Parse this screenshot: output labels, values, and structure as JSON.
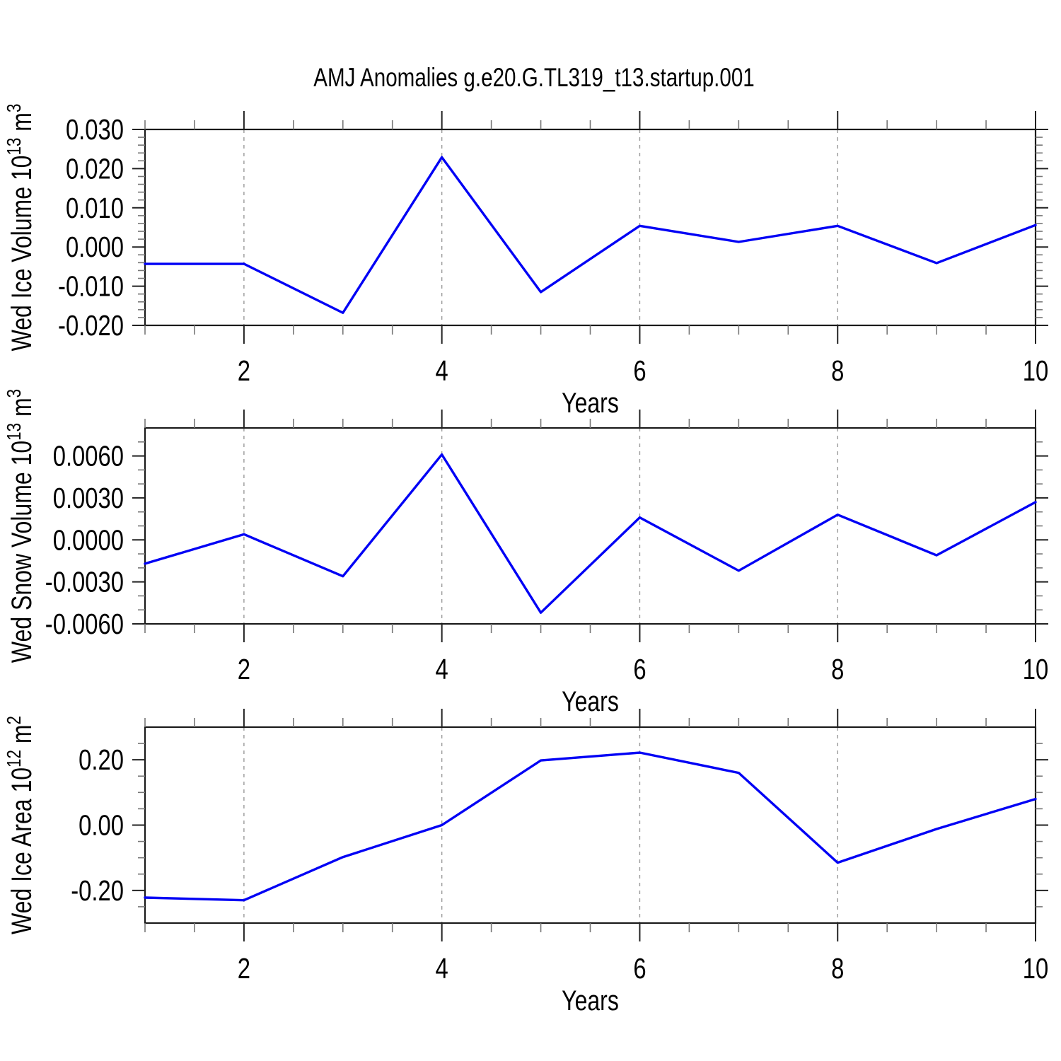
{
  "title": "AMJ Anomalies g.e20.G.TL319_t13.startup.001",
  "colors": {
    "line": "#0000F5",
    "grid": "#999999",
    "frame": "#1A1A1A",
    "tick_major": "#222222",
    "tick_minor": "#777777",
    "text": "#000000",
    "background": "#FFFFFF"
  },
  "chart_data": [
    {
      "type": "line",
      "id": "wed-ice-volume",
      "ylabel": "Wed Ice Volume 10^13 m^3",
      "ylabel_parts": [
        {
          "t": "Wed Ice Volume 10"
        },
        {
          "t": "13",
          "sup": true
        },
        {
          "t": " m"
        },
        {
          "t": "3",
          "sup": true
        }
      ],
      "xlabel": "Years",
      "x": [
        1,
        2,
        3,
        4,
        5,
        6,
        7,
        8,
        9,
        10
      ],
      "values": [
        -0.0043,
        -0.0043,
        -0.0168,
        0.0229,
        -0.0115,
        0.0054,
        0.0013,
        0.0054,
        -0.0041,
        0.0056
      ],
      "ylim": [
        -0.02,
        0.03
      ],
      "yticks": [
        {
          "v": 0.03,
          "label": "0.030"
        },
        {
          "v": 0.02,
          "label": "0.020"
        },
        {
          "v": 0.01,
          "label": "0.010"
        },
        {
          "v": 0.0,
          "label": "0.000"
        },
        {
          "v": -0.01,
          "label": "-0.010"
        },
        {
          "v": -0.02,
          "label": "-0.020"
        }
      ],
      "y_minor_step": 0.002,
      "xlim": [
        1,
        10
      ],
      "xticks": [
        {
          "v": 2,
          "label": "2"
        },
        {
          "v": 4,
          "label": "4"
        },
        {
          "v": 6,
          "label": "6"
        },
        {
          "v": 8,
          "label": "8"
        },
        {
          "v": 10,
          "label": "10"
        }
      ],
      "x_minor_step": 0.5,
      "grid_x": [
        2,
        4,
        6,
        8
      ],
      "grid_style": "vertical-dashed",
      "legend": "none"
    },
    {
      "type": "line",
      "id": "wed-snow-volume",
      "ylabel": "Wed Snow Volume 10^13 m^3",
      "ylabel_parts": [
        {
          "t": "Wed Snow Volume 10"
        },
        {
          "t": "13",
          "sup": true
        },
        {
          "t": " m"
        },
        {
          "t": "3",
          "sup": true
        }
      ],
      "xlabel": "Years",
      "x": [
        1,
        2,
        3,
        4,
        5,
        6,
        7,
        8,
        9,
        10
      ],
      "values": [
        -0.0017,
        0.0004,
        -0.0026,
        0.0061,
        -0.0052,
        0.0016,
        -0.0022,
        0.0018,
        -0.0011,
        0.0027
      ],
      "ylim": [
        -0.006,
        0.008
      ],
      "yticks": [
        {
          "v": 0.006,
          "label": "0.0060"
        },
        {
          "v": 0.003,
          "label": "0.0030"
        },
        {
          "v": 0.0,
          "label": "0.0000"
        },
        {
          "v": -0.003,
          "label": "-0.0030"
        },
        {
          "v": -0.006,
          "label": "-0.0060"
        }
      ],
      "y_minor_step": 0.001,
      "xlim": [
        1,
        10
      ],
      "xticks": [
        {
          "v": 2,
          "label": "2"
        },
        {
          "v": 4,
          "label": "4"
        },
        {
          "v": 6,
          "label": "6"
        },
        {
          "v": 8,
          "label": "8"
        },
        {
          "v": 10,
          "label": "10"
        }
      ],
      "x_minor_step": 0.5,
      "grid_x": [
        2,
        4,
        6,
        8
      ],
      "grid_style": "vertical-dashed",
      "legend": "none"
    },
    {
      "type": "line",
      "id": "wed-ice-area",
      "ylabel": "Wed Ice Area 10^12 m^2",
      "ylabel_parts": [
        {
          "t": "Wed Ice Area 10"
        },
        {
          "t": "12",
          "sup": true
        },
        {
          "t": " m"
        },
        {
          "t": "2",
          "sup": true
        }
      ],
      "xlabel": "Years",
      "x": [
        1,
        2,
        3,
        4,
        5,
        6,
        7,
        8,
        9,
        10
      ],
      "values": [
        -0.222,
        -0.23,
        -0.098,
        0.0,
        0.198,
        0.222,
        0.16,
        -0.115,
        -0.012,
        0.08
      ],
      "ylim": [
        -0.3,
        0.3
      ],
      "yticks": [
        {
          "v": 0.2,
          "label": "0.20"
        },
        {
          "v": 0.0,
          "label": "0.00"
        },
        {
          "v": -0.2,
          "label": "-0.20"
        }
      ],
      "y_minor_step": 0.05,
      "xlim": [
        1,
        10
      ],
      "xticks": [
        {
          "v": 2,
          "label": "2"
        },
        {
          "v": 4,
          "label": "4"
        },
        {
          "v": 6,
          "label": "6"
        },
        {
          "v": 8,
          "label": "8"
        },
        {
          "v": 10,
          "label": "10"
        }
      ],
      "x_minor_step": 0.5,
      "grid_x": [
        2,
        4,
        6,
        8
      ],
      "grid_style": "vertical-dashed",
      "legend": "none"
    }
  ]
}
